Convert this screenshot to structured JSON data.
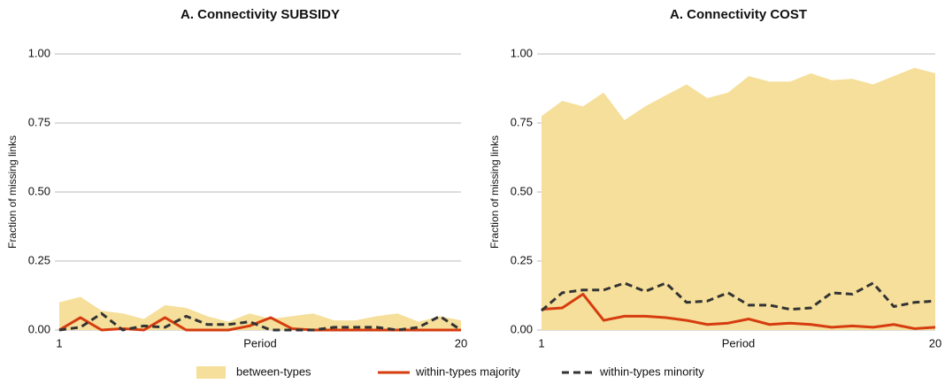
{
  "chart_data": [
    {
      "type": "line",
      "title": "A. Connectivity SUBSIDY",
      "x_label": "Period",
      "y_label": "Fraction of missing links",
      "x": [
        1,
        2,
        3,
        4,
        5,
        6,
        7,
        8,
        9,
        10,
        11,
        12,
        13,
        14,
        15,
        16,
        17,
        18,
        19,
        20
      ],
      "xlim": [
        1,
        20
      ],
      "xticks": [
        1,
        20
      ],
      "ylim": [
        0,
        1
      ],
      "yticks": [
        {
          "value": 0,
          "label": "0.00"
        },
        {
          "value": 0.25,
          "label": "0.25"
        },
        {
          "value": 0.5,
          "label": "0.50"
        },
        {
          "value": 0.75,
          "label": "0.75"
        },
        {
          "value": 1,
          "label": "1.00"
        }
      ],
      "grid": true,
      "series": [
        {
          "name": "between-types",
          "style": "area",
          "color": "#f5df9a",
          "values": [
            0.1,
            0.12,
            0.07,
            0.06,
            0.04,
            0.09,
            0.08,
            0.05,
            0.03,
            0.06,
            0.04,
            0.05,
            0.06,
            0.035,
            0.035,
            0.05,
            0.06,
            0.03,
            0.05,
            0.035
          ]
        },
        {
          "name": "within-types majority",
          "style": "solid",
          "color": "#d63c0f",
          "values": [
            0,
            0.045,
            0,
            0.005,
            0,
            0.045,
            0,
            0,
            0,
            0.015,
            0.045,
            0.005,
            0,
            0,
            0,
            0,
            0,
            0,
            0,
            0
          ]
        },
        {
          "name": "within-types minority",
          "style": "dashed",
          "color": "#333333",
          "values": [
            0,
            0.01,
            0.06,
            0,
            0.015,
            0.01,
            0.05,
            0.02,
            0.02,
            0.03,
            0,
            0,
            0,
            0.01,
            0.01,
            0.01,
            0,
            0.01,
            0.05,
            0
          ]
        }
      ]
    },
    {
      "type": "line",
      "title": "A. Connectivity COST",
      "x_label": "Period",
      "y_label": "Fraction of missing links",
      "x": [
        1,
        2,
        3,
        4,
        5,
        6,
        7,
        8,
        9,
        10,
        11,
        12,
        13,
        14,
        15,
        16,
        17,
        18,
        19,
        20
      ],
      "xlim": [
        1,
        20
      ],
      "xticks": [
        1,
        20
      ],
      "ylim": [
        0,
        1
      ],
      "yticks": [
        {
          "value": 0,
          "label": "0.00"
        },
        {
          "value": 0.25,
          "label": "0.25"
        },
        {
          "value": 0.5,
          "label": "0.50"
        },
        {
          "value": 0.75,
          "label": "0.75"
        },
        {
          "value": 1,
          "label": "1.00"
        }
      ],
      "grid": true,
      "series": [
        {
          "style": "area",
          "color": "#f5df9a",
          "values": [
            0.775,
            0.83,
            0.81,
            0.86,
            0.76,
            0.81,
            0.85,
            0.89,
            0.84,
            0.86,
            0.92,
            0.9,
            0.9,
            0.93,
            0.905,
            0.91,
            0.89,
            0.92,
            0.95,
            0.93
          ]
        },
        {
          "style": "solid",
          "color": "#d63c0f",
          "values": [
            0.075,
            0.08,
            0.13,
            0.035,
            0.05,
            0.05,
            0.045,
            0.035,
            0.02,
            0.025,
            0.04,
            0.02,
            0.025,
            0.02,
            0.01,
            0.015,
            0.01,
            0.02,
            0.005,
            0.01
          ]
        },
        {
          "style": "dashed",
          "color": "#333333",
          "values": [
            0.07,
            0.135,
            0.145,
            0.145,
            0.17,
            0.14,
            0.17,
            0.1,
            0.105,
            0.135,
            0.09,
            0.09,
            0.075,
            0.08,
            0.135,
            0.13,
            0.17,
            0.085,
            0.1,
            0.105
          ]
        }
      ]
    }
  ]
}
